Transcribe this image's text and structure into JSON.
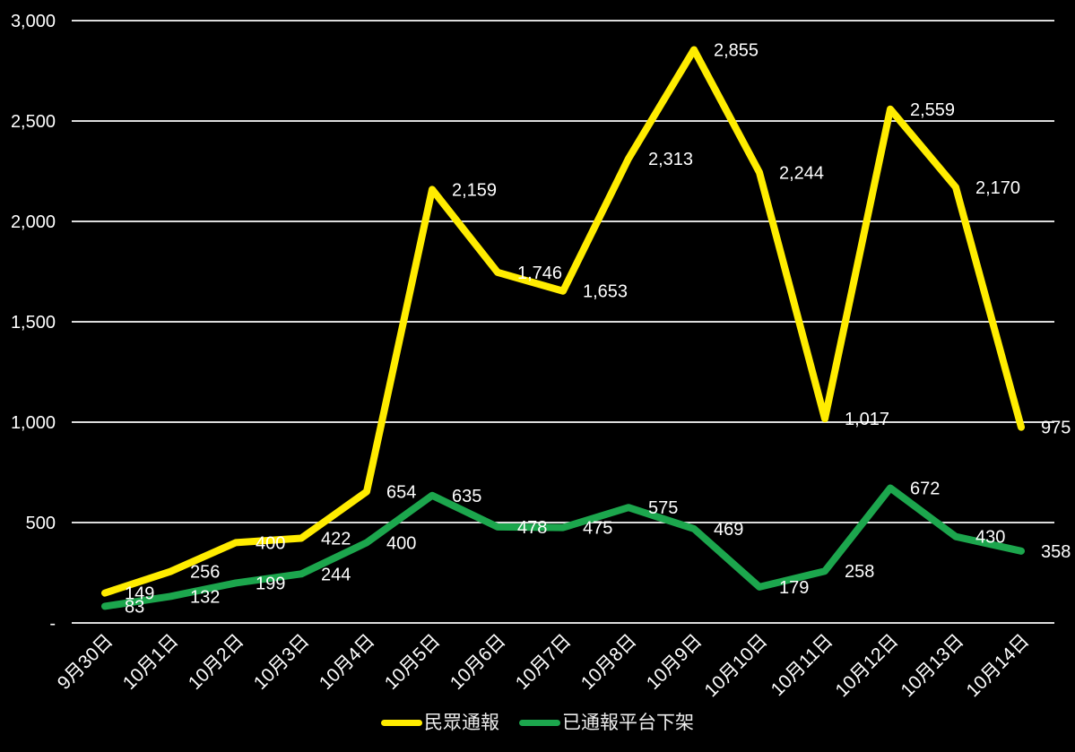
{
  "colors": {
    "background": "#000000",
    "gridline": "#DCDCDC",
    "axis_text": "#FFFFFF",
    "data_label_text": "#FFFFFF",
    "legend_text": "#EDEDED"
  },
  "chart_data": {
    "type": "line",
    "categories": [
      "9月30日",
      "10月1日",
      "10月2日",
      "10月3日",
      "10月4日",
      "10月5日",
      "10月6日",
      "10月7日",
      "10月8日",
      "10月9日",
      "10月10日",
      "10月11日",
      "10月12日",
      "10月13日",
      "10月14日"
    ],
    "series": [
      {
        "name": "民眾通報",
        "color": "#FFEC00",
        "values": [
          149,
          256,
          400,
          422,
          654,
          2159,
          1746,
          1653,
          2313,
          2855,
          2244,
          1017,
          2559,
          2170,
          975
        ]
      },
      {
        "name": "已通報平台下架",
        "color": "#1CA64D",
        "values": [
          83,
          132,
          199,
          244,
          400,
          635,
          478,
          475,
          575,
          469,
          179,
          258,
          672,
          430,
          358
        ]
      }
    ],
    "title": "",
    "xlabel": "",
    "ylabel": "",
    "ylim": [
      0,
      3000
    ],
    "ytick_interval": 500,
    "ytick_labels": [
      "-",
      "500",
      "1,000",
      "1,500",
      "2,000",
      "2,500",
      "3,000"
    ],
    "grid": true,
    "data_labels": true,
    "data_label_format": "thousands-comma",
    "x_label_rotation_deg": 45,
    "legend_position": "bottom-center"
  }
}
